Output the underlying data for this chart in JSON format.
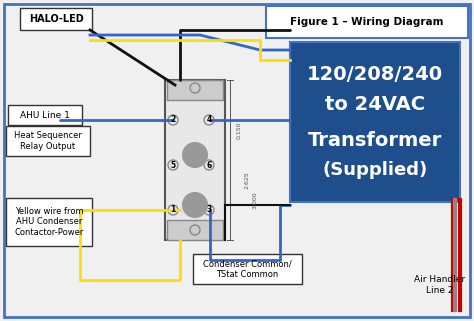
{
  "bg_color": "#f0f0f0",
  "border_color": "#4472c4",
  "title": "Figure 1 – Wiring Diagram",
  "title_box_color": "#ffffff",
  "title_text_color": "#000000",
  "transformer_bg": "#1f4e8c",
  "transformer_text": [
    "120/208/240",
    "to 24VAC",
    "Transformer",
    "(Supplied)"
  ],
  "transformer_text_color": "#ffffff",
  "labels": {
    "halo_led": "HALO-LED",
    "ahu_line1": "AHU Line 1",
    "heat_seq": "Heat Sequencer\nRelay Output",
    "yellow_wire": "Yellow wire from\nAHU Condenser\nContactor-Power",
    "condenser": "Condenser Common/\nTStat Common",
    "air_handler": "Air Handler\nLine 2"
  },
  "relay_box_color": "#d0d0d0",
  "relay_border_color": "#555555",
  "wire_colors": {
    "black": "#111111",
    "blue": "#3366cc",
    "yellow": "#ffdd00",
    "white": "#cccccc",
    "red": "#cc0000"
  }
}
